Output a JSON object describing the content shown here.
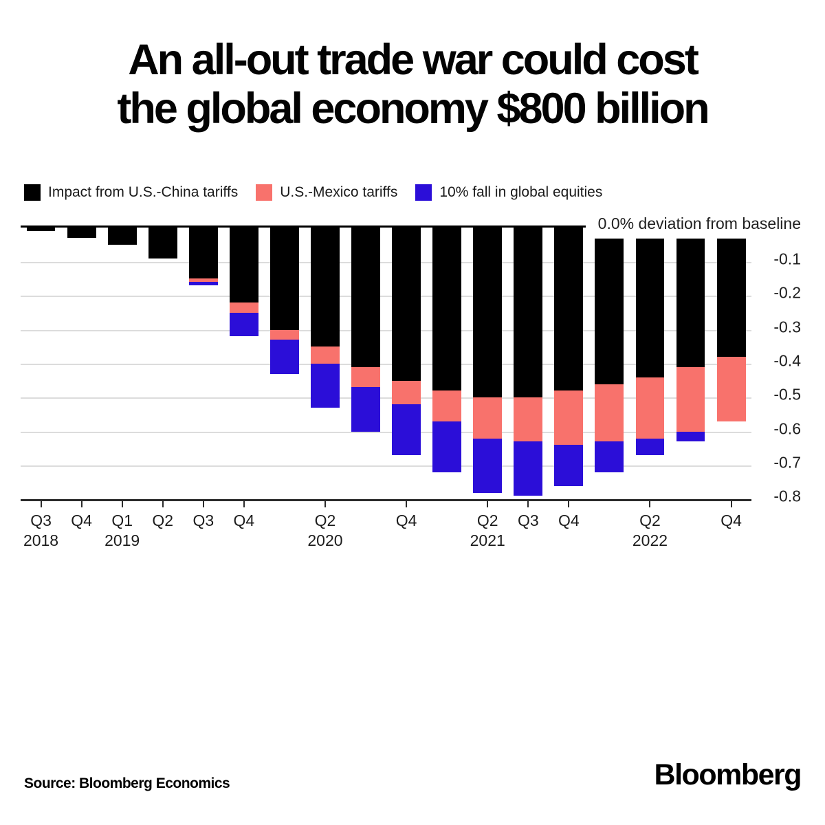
{
  "title": {
    "line1": "An all-out trade war could cost",
    "line2": "the global economy $800 billion"
  },
  "legend": {
    "items": [
      {
        "label": "Impact from U.S.-China tariffs",
        "color": "#000000"
      },
      {
        "label": "U.S.-Mexico tariffs",
        "color": "#F8726C"
      },
      {
        "label": "10% fall in global equities",
        "color": "#2B0ED8"
      }
    ]
  },
  "chart_data": {
    "type": "bar",
    "stacked": true,
    "title": "An all-out trade war could cost the global economy $800 billion",
    "annotation": "0.0% deviation from baseline",
    "ylabel": "% deviation from baseline",
    "ylim": [
      -0.8,
      0
    ],
    "grid": true,
    "legend_position": "top",
    "yticks": [
      "-0.1",
      "-0.2",
      "-0.3",
      "-0.4",
      "-0.5",
      "-0.6",
      "-0.7",
      "-0.8"
    ],
    "categories": [
      {
        "quarter": "Q3 2018",
        "tick_label": "Q3",
        "year_label": "2018"
      },
      {
        "quarter": "Q4 2018",
        "tick_label": "Q4",
        "year_label": ""
      },
      {
        "quarter": "Q1 2019",
        "tick_label": "Q1",
        "year_label": "2019"
      },
      {
        "quarter": "Q2 2019",
        "tick_label": "Q2",
        "year_label": ""
      },
      {
        "quarter": "Q3 2019",
        "tick_label": "Q3",
        "year_label": ""
      },
      {
        "quarter": "Q4 2019",
        "tick_label": "Q4",
        "year_label": ""
      },
      {
        "quarter": "Q1 2020",
        "tick_label": "",
        "year_label": ""
      },
      {
        "quarter": "Q2 2020",
        "tick_label": "Q2",
        "year_label": "2020"
      },
      {
        "quarter": "Q3 2020",
        "tick_label": "",
        "year_label": ""
      },
      {
        "quarter": "Q4 2020",
        "tick_label": "Q4",
        "year_label": ""
      },
      {
        "quarter": "Q1 2021",
        "tick_label": "",
        "year_label": ""
      },
      {
        "quarter": "Q2 2021",
        "tick_label": "Q2",
        "year_label": "2021"
      },
      {
        "quarter": "Q3 2021",
        "tick_label": "Q3",
        "year_label": ""
      },
      {
        "quarter": "Q4 2021",
        "tick_label": "Q4",
        "year_label": ""
      },
      {
        "quarter": "Q1 2022",
        "tick_label": "",
        "year_label": ""
      },
      {
        "quarter": "Q2 2022",
        "tick_label": "Q2",
        "year_label": "2022"
      },
      {
        "quarter": "Q3 2022",
        "tick_label": "",
        "year_label": ""
      },
      {
        "quarter": "Q4 2022",
        "tick_label": "Q4",
        "year_label": ""
      }
    ],
    "series": [
      {
        "name": "Impact from U.S.-China tariffs",
        "color": "#000000",
        "values": [
          -0.01,
          -0.03,
          -0.05,
          -0.09,
          -0.15,
          -0.22,
          -0.3,
          -0.35,
          -0.41,
          -0.45,
          -0.48,
          -0.5,
          -0.5,
          -0.48,
          -0.46,
          -0.44,
          -0.41,
          -0.38
        ]
      },
      {
        "name": "U.S.-Mexico tariffs",
        "color": "#F8726C",
        "values": [
          0,
          0,
          0,
          0,
          -0.01,
          -0.03,
          -0.03,
          -0.05,
          -0.06,
          -0.07,
          -0.09,
          -0.12,
          -0.13,
          -0.16,
          -0.17,
          -0.18,
          -0.19,
          -0.19
        ]
      },
      {
        "name": "10% fall in global equities",
        "color": "#2B0ED8",
        "values": [
          0,
          0,
          0,
          0,
          -0.01,
          -0.07,
          -0.1,
          -0.13,
          -0.13,
          -0.15,
          -0.15,
          -0.16,
          -0.16,
          -0.12,
          -0.09,
          -0.05,
          -0.03,
          0
        ]
      }
    ]
  },
  "footer": {
    "source": "Source: Bloomberg Economics",
    "logo": "Bloomberg"
  }
}
